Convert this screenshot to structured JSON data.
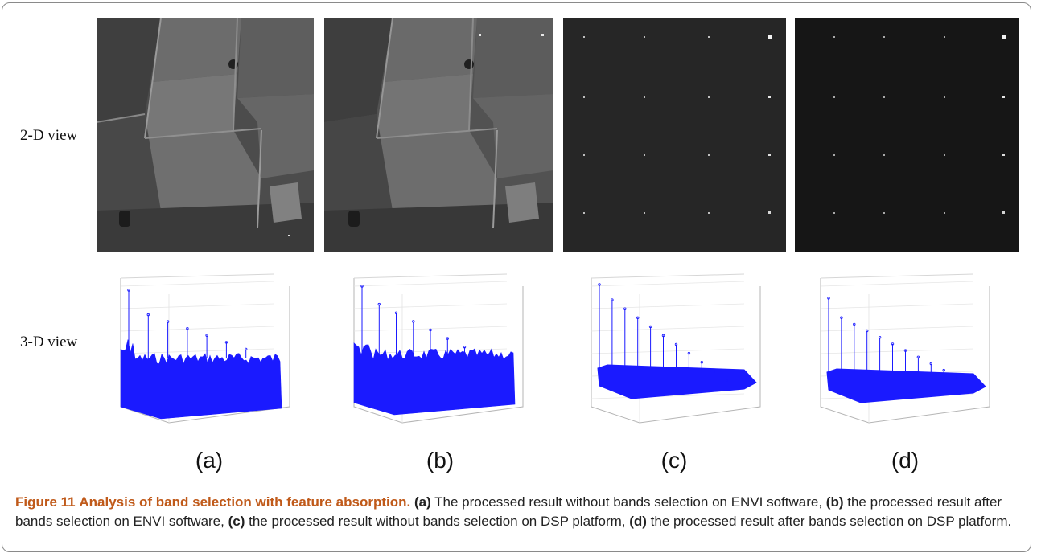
{
  "figure": {
    "row_labels": {
      "view2d": "2-D view",
      "view3d": "3-D view"
    },
    "panels": [
      {
        "label": "(a)",
        "image_2d": "field-aerial-grayscale",
        "plot_3d": "dense-noise-with-low-spikes"
      },
      {
        "label": "(b)",
        "image_2d": "field-aerial-grayscale",
        "plot_3d": "dense-noise-with-medium-spikes"
      },
      {
        "label": "(c)",
        "image_2d": "dark-grid-targets",
        "plot_3d": "flat-base-with-tall-spikes"
      },
      {
        "label": "(d)",
        "image_2d": "dark-grid-targets",
        "plot_3d": "flat-base-with-tall-spikes"
      }
    ],
    "plot_color": "#1a1aff",
    "caption": {
      "number": "Figure 11",
      "title": "Analysis of band selection with feature absorption.",
      "parts": [
        {
          "key": "(a)",
          "text": " The processed result without bands selection on ENVI software, "
        },
        {
          "key": "(b)",
          "text": " the processed result after bands selection on ENVI software, "
        },
        {
          "key": "(c)",
          "text": " the processed result without bands selection on DSP platform, "
        },
        {
          "key": "(d)",
          "text": " the processed result after bands selection on DSP platform."
        }
      ]
    }
  }
}
